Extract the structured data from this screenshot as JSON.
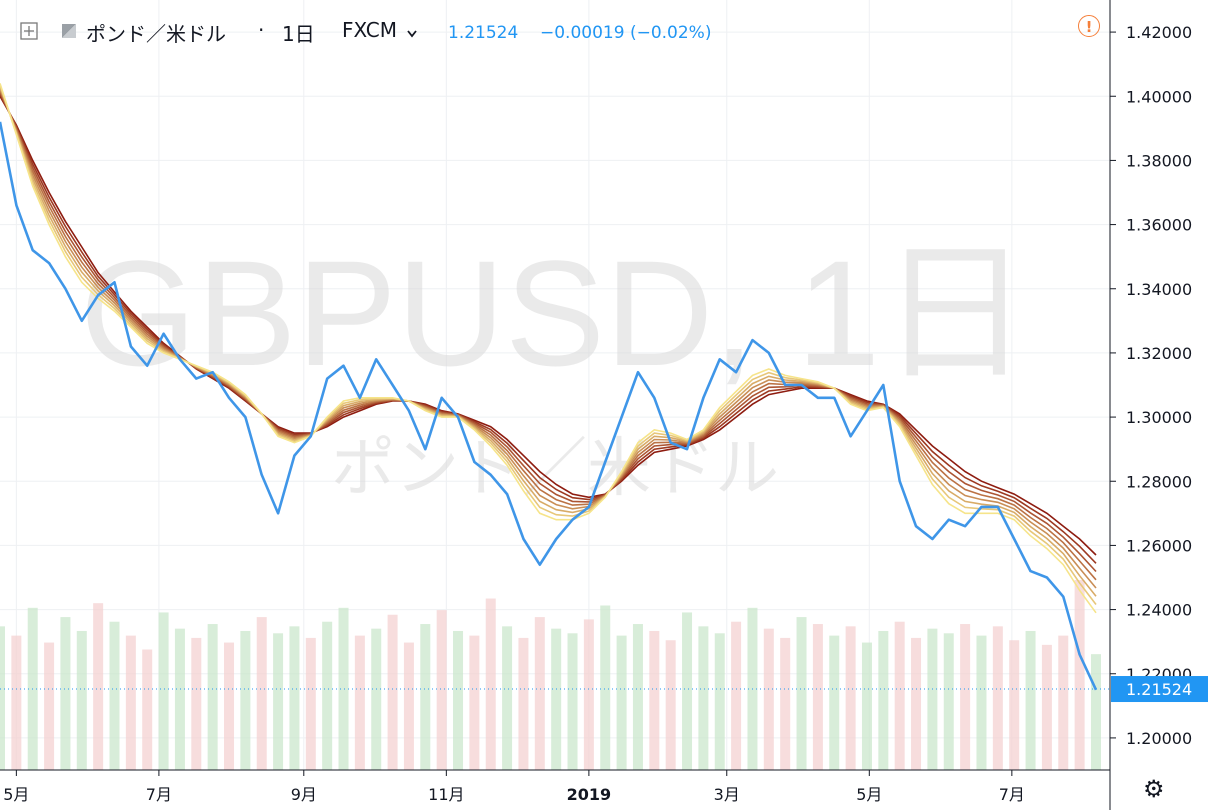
{
  "header": {
    "symbol": "ポンド／米ドル",
    "separator": "·",
    "interval": "1日",
    "exchange": "FXCM",
    "price": "1.21524",
    "change": "−0.00019 (−0.02%)"
  },
  "watermark": {
    "title": "GBPUSD, 1日",
    "subtitle": "ポンド／米ドル"
  },
  "icons": [
    "add-indicator-icon",
    "symbol-flag-icon",
    "chevron-down-icon",
    "alert-icon",
    "gear-icon"
  ],
  "colors": {
    "price_line": "#3f96e8",
    "ma_fast": "#f6e48a",
    "ma_slow": "#8e1c10",
    "volume_up": "#c8e6c9",
    "volume_down": "#f4cfcf",
    "last_price_tag": "#2196f3"
  },
  "chart_data": {
    "type": "line",
    "x": [
      "2018-04-24",
      "2018-05-01",
      "2018-05-08",
      "2018-05-15",
      "2018-05-22",
      "2018-05-29",
      "2018-06-05",
      "2018-06-12",
      "2018-06-19",
      "2018-06-26",
      "2018-07-03",
      "2018-07-10",
      "2018-07-17",
      "2018-07-24",
      "2018-07-31",
      "2018-08-07",
      "2018-08-14",
      "2018-08-21",
      "2018-08-28",
      "2018-09-04",
      "2018-09-11",
      "2018-09-18",
      "2018-09-25",
      "2018-10-02",
      "2018-10-09",
      "2018-10-16",
      "2018-10-23",
      "2018-10-30",
      "2018-11-06",
      "2018-11-13",
      "2018-11-20",
      "2018-11-27",
      "2018-12-04",
      "2018-12-11",
      "2018-12-18",
      "2018-12-25",
      "2019-01-01",
      "2019-01-08",
      "2019-01-15",
      "2019-01-22",
      "2019-01-29",
      "2019-02-05",
      "2019-02-12",
      "2019-02-19",
      "2019-02-26",
      "2019-03-05",
      "2019-03-12",
      "2019-03-19",
      "2019-03-26",
      "2019-04-02",
      "2019-04-09",
      "2019-04-16",
      "2019-04-23",
      "2019-04-30",
      "2019-05-07",
      "2019-05-14",
      "2019-05-21",
      "2019-05-28",
      "2019-06-04",
      "2019-06-11",
      "2019-06-18",
      "2019-06-25",
      "2019-07-02",
      "2019-07-09",
      "2019-07-16",
      "2019-07-23",
      "2019-07-30",
      "2019-08-06"
    ],
    "series": [
      {
        "values": [
          1.392,
          1.366,
          1.352,
          1.348,
          1.34,
          1.33,
          1.338,
          1.342,
          1.322,
          1.316,
          1.326,
          1.318,
          1.312,
          1.314,
          1.306,
          1.3,
          1.282,
          1.27,
          1.288,
          1.294,
          1.312,
          1.316,
          1.306,
          1.318,
          1.31,
          1.302,
          1.29,
          1.306,
          1.3,
          1.286,
          1.282,
          1.276,
          1.262,
          1.254,
          1.262,
          1.268,
          1.272,
          1.286,
          1.3,
          1.314,
          1.306,
          1.292,
          1.29,
          1.306,
          1.318,
          1.314,
          1.324,
          1.32,
          1.31,
          1.31,
          1.306,
          1.306,
          1.294,
          1.302,
          1.31,
          1.28,
          1.266,
          1.262,
          1.268,
          1.266,
          1.272,
          1.272,
          1.262,
          1.252,
          1.25,
          1.244,
          1.226,
          1.215
        ]
      }
    ],
    "ribbon": {
      "count": 8,
      "fast": [
        1.404,
        1.388,
        1.372,
        1.36,
        1.35,
        1.342,
        1.337,
        1.333,
        1.328,
        1.323,
        1.32,
        1.318,
        1.316,
        1.314,
        1.311,
        1.307,
        1.301,
        1.294,
        1.292,
        1.294,
        1.3,
        1.305,
        1.306,
        1.306,
        1.306,
        1.305,
        1.302,
        1.3,
        1.3,
        1.296,
        1.291,
        1.285,
        1.277,
        1.27,
        1.268,
        1.268,
        1.27,
        1.275,
        1.283,
        1.292,
        1.296,
        1.295,
        1.293,
        1.296,
        1.303,
        1.308,
        1.313,
        1.315,
        1.313,
        1.312,
        1.311,
        1.309,
        1.304,
        1.302,
        1.303,
        1.297,
        1.288,
        1.279,
        1.273,
        1.27,
        1.27,
        1.27,
        1.268,
        1.263,
        1.259,
        1.254,
        1.246,
        1.239
      ],
      "slow": [
        1.4,
        1.391,
        1.38,
        1.37,
        1.361,
        1.353,
        1.345,
        1.339,
        1.333,
        1.328,
        1.323,
        1.319,
        1.315,
        1.312,
        1.309,
        1.305,
        1.301,
        1.297,
        1.295,
        1.295,
        1.297,
        1.3,
        1.302,
        1.304,
        1.305,
        1.305,
        1.304,
        1.302,
        1.301,
        1.299,
        1.297,
        1.293,
        1.288,
        1.283,
        1.279,
        1.276,
        1.275,
        1.276,
        1.28,
        1.285,
        1.289,
        1.29,
        1.291,
        1.293,
        1.296,
        1.3,
        1.304,
        1.307,
        1.308,
        1.309,
        1.309,
        1.309,
        1.307,
        1.305,
        1.304,
        1.301,
        1.296,
        1.291,
        1.287,
        1.283,
        1.28,
        1.278,
        1.276,
        1.273,
        1.27,
        1.266,
        1.262,
        1.257
      ]
    },
    "volume": [
      62,
      58,
      70,
      55,
      66,
      60,
      72,
      64,
      58,
      52,
      68,
      61,
      57,
      63,
      55,
      60,
      66,
      59,
      62,
      57,
      64,
      70,
      58,
      61,
      67,
      55,
      63,
      69,
      60,
      58,
      74,
      62,
      57,
      66,
      61,
      59,
      65,
      71,
      58,
      63,
      60,
      56,
      68,
      62,
      59,
      64,
      70,
      61,
      57,
      66,
      63,
      58,
      62,
      55,
      60,
      64,
      57,
      61,
      59,
      63,
      58,
      62,
      56,
      60,
      54,
      58,
      82,
      50
    ],
    "volume_up": [
      true,
      false,
      true,
      false,
      true,
      true,
      false,
      true,
      false,
      false,
      true,
      true,
      false,
      true,
      false,
      true,
      false,
      true,
      true,
      false,
      true,
      true,
      false,
      true,
      false,
      false,
      true,
      false,
      true,
      false,
      false,
      true,
      false,
      false,
      true,
      true,
      false,
      true,
      true,
      true,
      false,
      false,
      true,
      true,
      true,
      false,
      true,
      false,
      false,
      true,
      false,
      true,
      false,
      true,
      true,
      false,
      false,
      true,
      true,
      false,
      true,
      false,
      false,
      true,
      false,
      false,
      false,
      true
    ],
    "ylim": [
      1.19,
      1.43
    ],
    "yticks": [
      "1.42000",
      "1.40000",
      "1.38000",
      "1.36000",
      "1.34000",
      "1.32000",
      "1.30000",
      "1.28000",
      "1.26000",
      "1.24000",
      "1.22000",
      "1.20000"
    ],
    "ytick_values": [
      1.42,
      1.4,
      1.38,
      1.36,
      1.34,
      1.32,
      1.3,
      1.28,
      1.26,
      1.24,
      1.22,
      1.2
    ],
    "xticks": [
      "5月",
      "7月",
      "9月",
      "11月",
      "2019",
      "3月",
      "5月",
      "7月"
    ],
    "xtick_dates": [
      "2018-05-01",
      "2018-07-01",
      "2018-09-01",
      "2018-11-01",
      "2019-01-01",
      "2019-03-01",
      "2019-05-01",
      "2019-07-01"
    ],
    "xlim": [
      "2018-04-24",
      "2019-08-12"
    ],
    "last_value": "1.21524",
    "last_value_num": 1.21524,
    "grid": true
  }
}
